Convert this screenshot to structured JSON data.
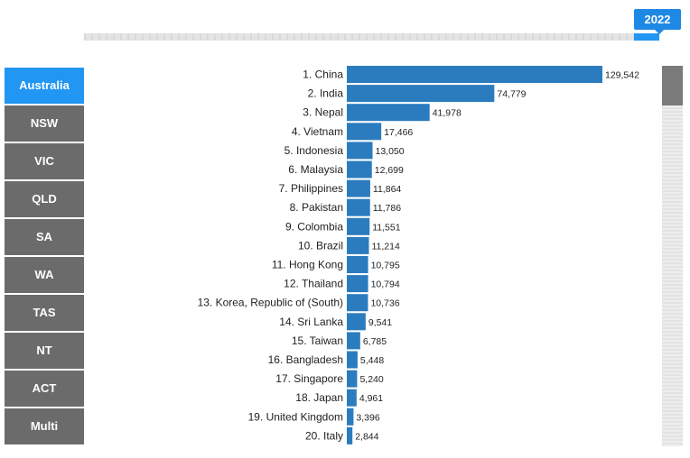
{
  "year": "2022",
  "regions": [
    "Australia",
    "NSW",
    "VIC",
    "QLD",
    "SA",
    "WA",
    "TAS",
    "NT",
    "ACT",
    "Multi"
  ],
  "active_region": "Australia",
  "colors": {
    "bar": "#2b7cbf",
    "active_tab": "#2196f3",
    "inactive_tab": "#6b6b6b",
    "year_badge": "#1e88e5"
  },
  "chart_data": {
    "type": "bar",
    "orientation": "horizontal",
    "title": "",
    "xlabel": "",
    "ylabel": "",
    "categories": [
      "1. China",
      "2. India",
      "3. Nepal",
      "4. Vietnam",
      "5. Indonesia",
      "6. Malaysia",
      "7. Philippines",
      "8. Pakistan",
      "9. Colombia",
      "10. Brazil",
      "11. Hong Kong",
      "12. Thailand",
      "13. Korea, Republic of (South)",
      "14. Sri Lanka",
      "15. Taiwan",
      "16. Bangladesh",
      "17. Singapore",
      "18. Japan",
      "19. United Kingdom",
      "20. Italy"
    ],
    "values": [
      129542,
      74779,
      41978,
      17466,
      13050,
      12699,
      11864,
      11786,
      11551,
      11214,
      10795,
      10794,
      10736,
      9541,
      6785,
      5448,
      5240,
      4961,
      3396,
      2844
    ],
    "value_labels": [
      "129,542",
      "74,779",
      "41,978",
      "17,466",
      "13,050",
      "12,699",
      "11,864",
      "11,786",
      "11,551",
      "11,214",
      "10,795",
      "10,794",
      "10,736",
      "9,541",
      "6,785",
      "5,448",
      "5,240",
      "4,961",
      "3,396",
      "2,844"
    ],
    "xlim": [
      0,
      129542
    ],
    "grid": false,
    "legend": "none"
  }
}
